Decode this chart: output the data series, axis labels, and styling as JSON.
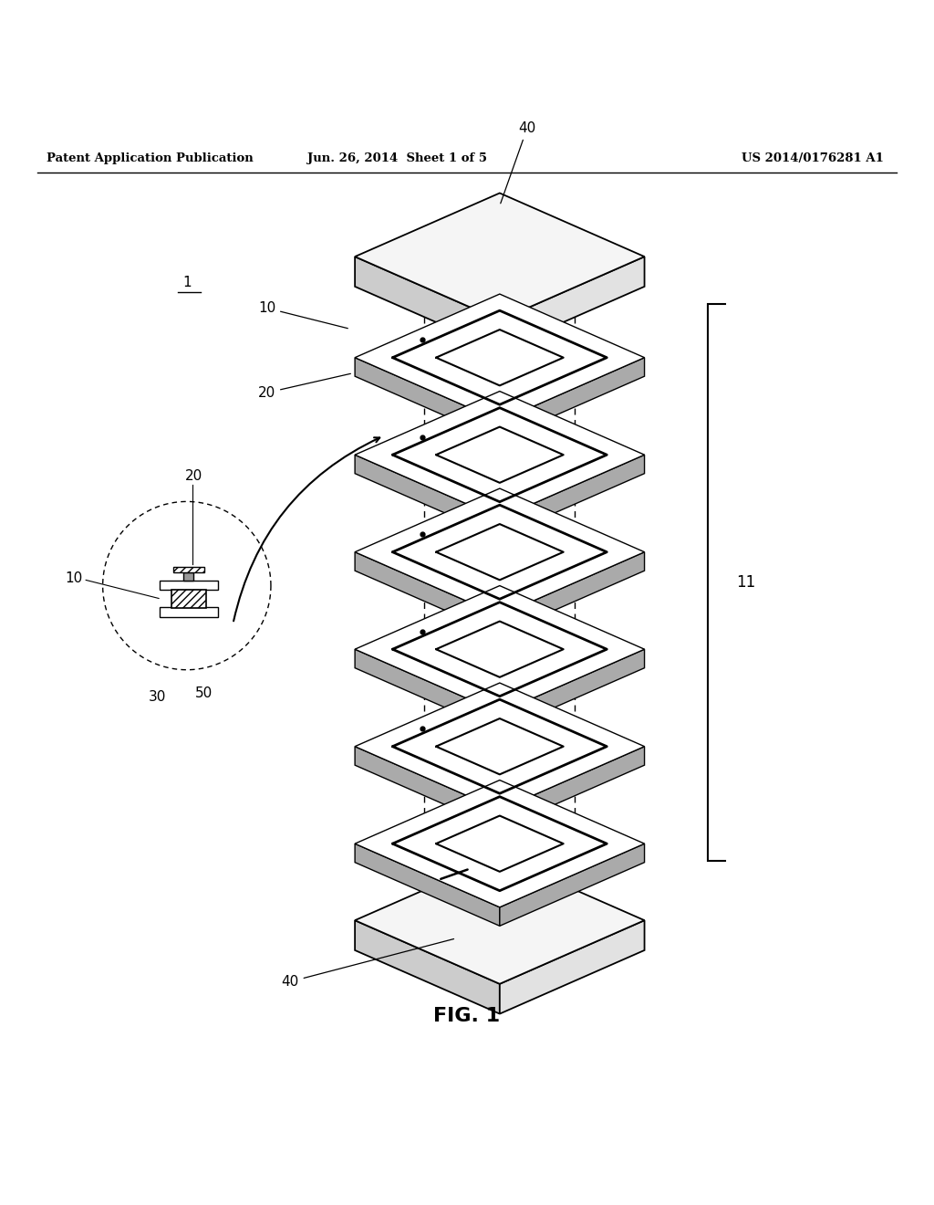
{
  "bg_color": "#ffffff",
  "header_left": "Patent Application Publication",
  "header_mid": "Jun. 26, 2014  Sheet 1 of 5",
  "header_right": "US 2014/0176281 A1",
  "fig_label": "FIG. 1",
  "label_1": "1",
  "label_40_top": "40",
  "label_10": "10",
  "label_20": "20",
  "label_11": "11",
  "label_40_bot": "40",
  "label_20_zoom": "20",
  "label_10_zoom": "10",
  "label_30": "30",
  "label_50": "50"
}
